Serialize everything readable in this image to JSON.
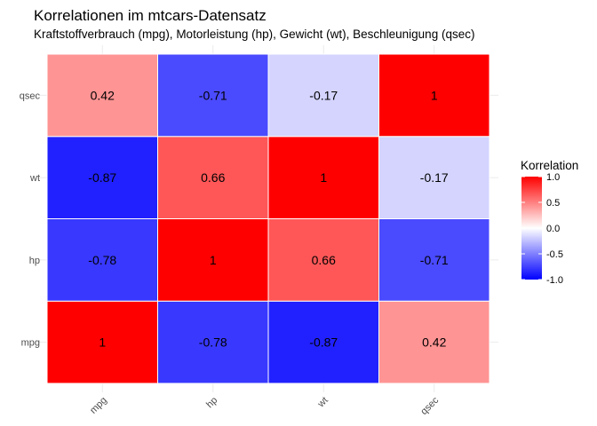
{
  "chart_data": {
    "type": "heatmap",
    "title": "Korrelationen im mtcars-Datensatz",
    "subtitle": "Kraftstoffverbrauch (mpg), Motorleistung (hp), Gewicht (wt), Beschleunigung (qsec)",
    "x_categories": [
      "mpg",
      "hp",
      "wt",
      "qsec"
    ],
    "y_categories": [
      "mpg",
      "hp",
      "wt",
      "qsec"
    ],
    "values": [
      [
        1,
        -0.78,
        -0.87,
        0.42
      ],
      [
        -0.78,
        1,
        0.66,
        -0.71
      ],
      [
        -0.87,
        0.66,
        1,
        -0.17
      ],
      [
        0.42,
        -0.71,
        -0.17,
        1
      ]
    ],
    "value_labels": [
      [
        "1",
        "-0.78",
        "-0.87",
        "0.42"
      ],
      [
        "-0.78",
        "1",
        "0.66",
        "-0.71"
      ],
      [
        "-0.87",
        "0.66",
        "1",
        "-0.17"
      ],
      [
        "0.42",
        "-0.71",
        "-0.17",
        "1"
      ]
    ],
    "xlabel": "",
    "ylabel": "",
    "legend": {
      "title": "Korrelation",
      "range": [
        -1,
        1
      ],
      "ticks": [
        1.0,
        0.5,
        0.0,
        -0.5,
        -1.0
      ],
      "tick_labels": [
        "1.0",
        "0.5",
        "0.0",
        "-0.5",
        "-1.0"
      ],
      "placement": "right"
    },
    "colors": {
      "low": "#0000ff",
      "mid": "#ffffff",
      "high": "#ff0000"
    },
    "grid": true
  }
}
